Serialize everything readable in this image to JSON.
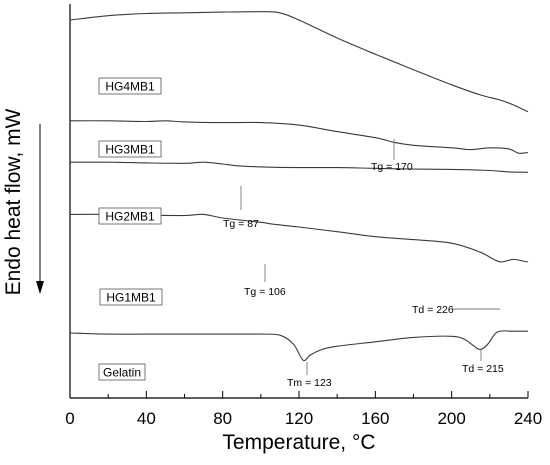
{
  "chart_data": {
    "type": "line",
    "title": "",
    "xlabel": "Temperature, ",
    "xlabel_unit": "°C",
    "ylabel": "Endo heat flow, mW",
    "xlim": [
      0,
      240
    ],
    "x_ticks": [
      0,
      40,
      80,
      120,
      160,
      200,
      240
    ],
    "y_ticks_shown": false,
    "y_arrow_direction": "down",
    "grid": false,
    "legend": "none",
    "series": [
      {
        "name": "HG4MB1",
        "x": [
          0,
          20,
          40,
          60,
          80,
          100,
          110,
          120,
          140,
          160,
          180,
          200,
          215,
          225,
          232,
          240
        ],
        "values": [
          7.5,
          7.62,
          7.68,
          7.7,
          7.72,
          7.73,
          7.7,
          7.5,
          7.0,
          6.55,
          6.12,
          5.7,
          5.42,
          5.28,
          5.15,
          4.95
        ]
      },
      {
        "name": "HG3MB1",
        "x": [
          0,
          20,
          40,
          50,
          60,
          80,
          100,
          120,
          140,
          160,
          170,
          180,
          200,
          210,
          220,
          230,
          235,
          240
        ],
        "values": [
          4.7,
          4.7,
          4.68,
          4.7,
          4.67,
          4.65,
          4.65,
          4.58,
          4.4,
          4.23,
          4.1,
          4.02,
          3.95,
          3.9,
          3.95,
          3.92,
          3.8,
          3.82
        ]
      },
      {
        "name": "HG2MB1",
        "x": [
          0,
          20,
          40,
          60,
          70,
          80,
          88,
          100,
          120,
          140,
          160,
          180,
          200,
          220,
          230,
          240
        ],
        "values": [
          3.55,
          3.55,
          3.53,
          3.52,
          3.55,
          3.5,
          3.45,
          3.42,
          3.4,
          3.4,
          3.38,
          3.36,
          3.35,
          3.32,
          3.28,
          3.27
        ]
      },
      {
        "name": "HG1MB1",
        "x": [
          0,
          20,
          40,
          60,
          70,
          80,
          100,
          106,
          120,
          140,
          160,
          180,
          200,
          215,
          222,
          226,
          232,
          236,
          240
        ],
        "values": [
          2.1,
          2.1,
          2.08,
          2.07,
          2.1,
          2.0,
          1.88,
          1.83,
          1.75,
          1.62,
          1.48,
          1.4,
          1.3,
          1.05,
          0.85,
          0.78,
          0.85,
          0.82,
          0.78
        ]
      },
      {
        "name": "Gelatin",
        "x": [
          0,
          20,
          40,
          60,
          80,
          100,
          110,
          117,
          121,
          123,
          126,
          132,
          140,
          160,
          180,
          200,
          207,
          211,
          215,
          219,
          224,
          232,
          240
        ],
        "values": [
          0.0,
          -0.05,
          -0.05,
          -0.05,
          -0.05,
          -0.05,
          -0.1,
          -0.5,
          -1.1,
          -1.25,
          -1.0,
          -0.75,
          -0.6,
          -0.4,
          -0.2,
          -0.15,
          -0.3,
          -0.55,
          -0.75,
          -0.5,
          0.05,
          0.08,
          0.08
        ]
      }
    ],
    "annotations": [
      {
        "text": "Tg = 170",
        "x": 170,
        "series": "HG3MB1"
      },
      {
        "text": "Tg = 87",
        "x": 88,
        "series": "HG2MB1"
      },
      {
        "text": "Tg = 106",
        "x": 102,
        "series": "HG1MB1"
      },
      {
        "text": "Td = 226",
        "x": 223,
        "series": "HG1MB1"
      },
      {
        "text": "Tm = 123",
        "x": 123,
        "series": "Gelatin"
      },
      {
        "text": "Td = 215",
        "x": 215,
        "series": "Gelatin"
      }
    ]
  }
}
